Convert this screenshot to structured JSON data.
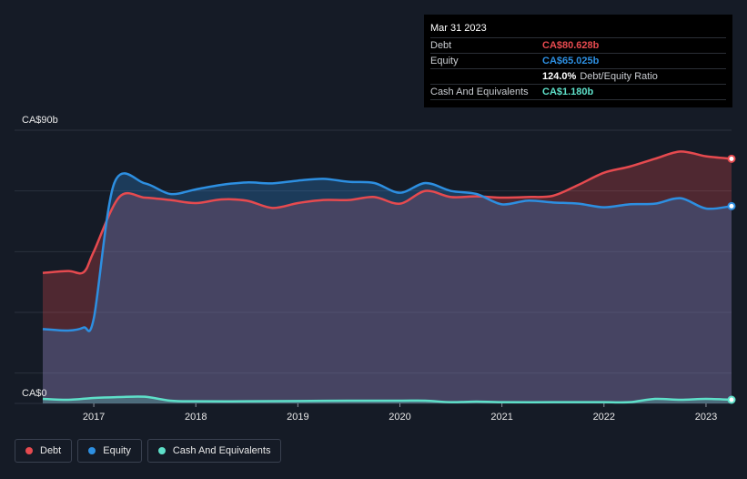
{
  "colors": {
    "background": "#151b26",
    "debt": "#e64a4f",
    "equity": "#2d8fe1",
    "cash": "#5ee0c9",
    "grid": "#2a313d"
  },
  "tooltip": {
    "date": "Mar 31 2023",
    "debt_label": "Debt",
    "debt_value": "CA$80.628b",
    "equity_label": "Equity",
    "equity_value": "CA$65.025b",
    "ratio_value": "124.0%",
    "ratio_label": "Debt/Equity Ratio",
    "cash_label": "Cash And Equivalents",
    "cash_value": "CA$1.180b"
  },
  "legend": [
    {
      "label": "Debt",
      "icon": "debt-dot"
    },
    {
      "label": "Equity",
      "icon": "equity-dot"
    },
    {
      "label": "Cash And Equivalents",
      "icon": "cash-dot"
    }
  ],
  "chart_data": {
    "type": "area",
    "y_unit": "CA$ billions",
    "ylim": [
      0,
      90
    ],
    "y_tick_labels": [
      "CA$0",
      "CA$90b"
    ],
    "x_tick_labels": [
      "2017",
      "2018",
      "2019",
      "2020",
      "2021",
      "2022",
      "2023"
    ],
    "xlim": [
      2016.5,
      2023.25
    ],
    "grid": true,
    "legend_position": "bottom-left",
    "series": [
      {
        "name": "Debt",
        "x": [
          2016.5,
          2016.75,
          2016.9,
          2017.0,
          2017.25,
          2017.5,
          2017.75,
          2018.0,
          2018.25,
          2018.5,
          2018.75,
          2019.0,
          2019.25,
          2019.5,
          2019.75,
          2020.0,
          2020.25,
          2020.5,
          2020.75,
          2021.0,
          2021.25,
          2021.5,
          2021.75,
          2022.0,
          2022.25,
          2022.5,
          2022.75,
          2023.0,
          2023.25
        ],
        "values": [
          43.0,
          43.6,
          43.2,
          50.0,
          68.0,
          67.8,
          67.0,
          66.0,
          67.2,
          66.8,
          64.4,
          66.0,
          67.0,
          67.0,
          68.0,
          65.8,
          70.0,
          68.0,
          68.2,
          67.8,
          68.0,
          68.4,
          72.0,
          76.0,
          78.0,
          80.6,
          83.0,
          81.4,
          80.6
        ]
      },
      {
        "name": "Equity",
        "x": [
          2016.5,
          2016.75,
          2016.9,
          2017.0,
          2017.2,
          2017.5,
          2017.75,
          2018.0,
          2018.25,
          2018.5,
          2018.75,
          2019.0,
          2019.25,
          2019.5,
          2019.75,
          2020.0,
          2020.25,
          2020.5,
          2020.75,
          2021.0,
          2021.25,
          2021.5,
          2021.75,
          2022.0,
          2022.25,
          2022.5,
          2022.75,
          2023.0,
          2023.25
        ],
        "values": [
          24.5,
          24.0,
          25.0,
          28.0,
          72.5,
          72.5,
          69.0,
          70.5,
          72.0,
          72.8,
          72.5,
          73.4,
          74.0,
          73.0,
          72.6,
          69.4,
          72.6,
          70.0,
          69.0,
          65.6,
          66.8,
          66.2,
          65.8,
          64.6,
          65.6,
          65.8,
          67.6,
          64.2,
          65.0
        ]
      },
      {
        "name": "Cash And Equivalents",
        "x": [
          2016.5,
          2016.75,
          2017.0,
          2017.25,
          2017.5,
          2017.75,
          2018.0,
          2018.5,
          2019.0,
          2019.5,
          2020.0,
          2020.25,
          2020.5,
          2020.75,
          2021.0,
          2021.5,
          2022.0,
          2022.25,
          2022.5,
          2022.75,
          2023.0,
          2023.25
        ],
        "values": [
          1.5,
          1.2,
          1.8,
          2.1,
          2.2,
          0.9,
          0.7,
          0.7,
          0.8,
          0.9,
          0.9,
          0.9,
          0.4,
          0.6,
          0.4,
          0.4,
          0.4,
          0.4,
          1.5,
          1.2,
          1.5,
          1.2
        ]
      }
    ]
  }
}
